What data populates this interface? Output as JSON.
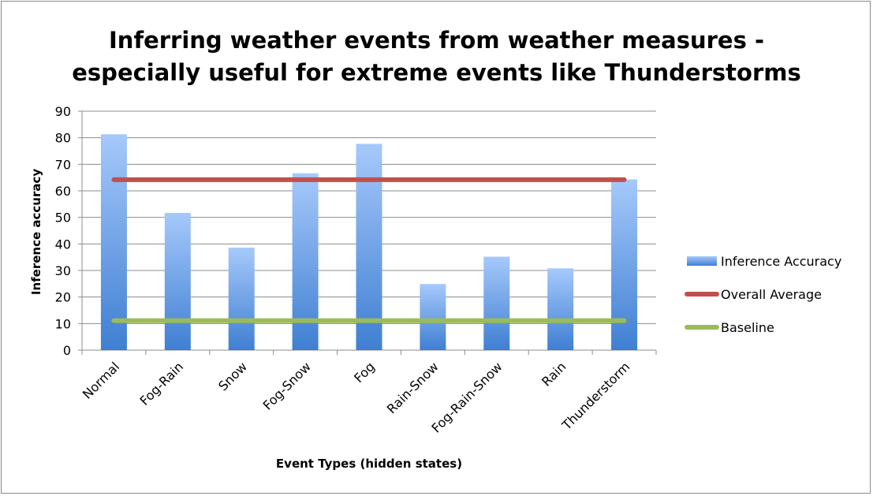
{
  "chart_data": {
    "type": "bar",
    "title_lines": [
      "Inferring weather events from weather measures -",
      "especially useful for extreme events like Thunderstorms"
    ],
    "xlabel": "Event Types (hidden states)",
    "ylabel": "Inference accuracy",
    "ylim": [
      0,
      90
    ],
    "yticks": [
      0,
      10,
      20,
      30,
      40,
      50,
      60,
      70,
      80,
      90
    ],
    "grid": "horizontal",
    "legend_position": "right",
    "categories": [
      "Normal",
      "Fog-Rain",
      "Snow",
      "Fog-Snow",
      "Fog",
      "Rain-Snow",
      "Fog-Rain-Snow",
      "Rain",
      "Thunderstorm"
    ],
    "series": [
      {
        "name": "Inference Accuracy",
        "kind": "bar",
        "color": "#4a86d4",
        "values": [
          81.3,
          51.7,
          38.6,
          66.6,
          77.7,
          24.9,
          35.2,
          30.8,
          64.3
        ]
      },
      {
        "name": "Overall Average",
        "kind": "line",
        "color": "#c0504d",
        "values": [
          64.2,
          64.2,
          64.2,
          64.2,
          64.2,
          64.2,
          64.2,
          64.2,
          64.2
        ]
      },
      {
        "name": "Baseline",
        "kind": "line",
        "color": "#9bbb59",
        "values": [
          11.1,
          11.1,
          11.1,
          11.1,
          11.1,
          11.1,
          11.1,
          11.1,
          11.1
        ]
      }
    ]
  }
}
